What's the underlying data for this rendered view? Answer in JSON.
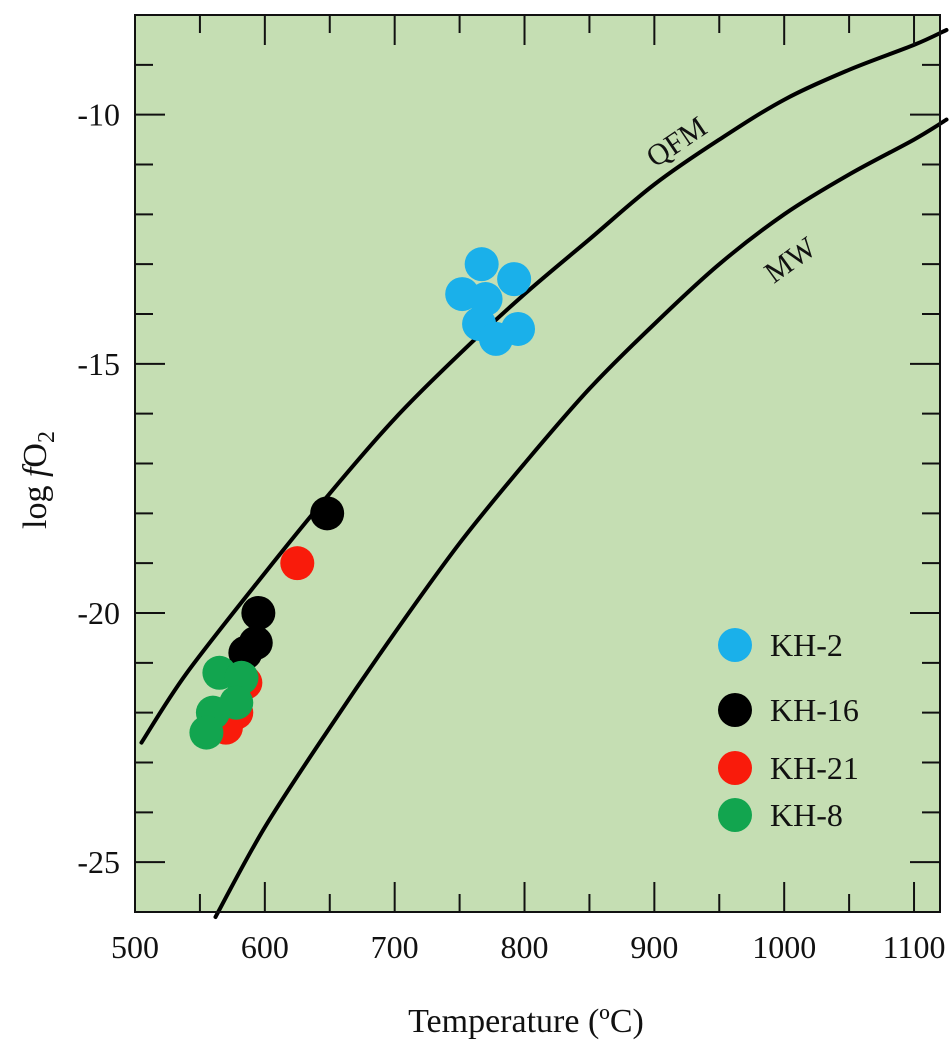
{
  "chart_data": {
    "type": "scatter",
    "title": "",
    "xlabel": "Temperature (ºC)",
    "ylabel_main": "log ",
    "ylabel_italic": "f",
    "ylabel_species": "O",
    "ylabel_subscript": "2",
    "xlim": [
      500,
      1120
    ],
    "ylim": [
      -26,
      -8
    ],
    "x_ticks": [
      500,
      600,
      700,
      800,
      900,
      1000,
      1100
    ],
    "y_ticks": [
      -10,
      -15,
      -20,
      -25
    ],
    "grid": false,
    "plot_background": "#c5deb3",
    "legend_position": "bottom-right",
    "curves": [
      {
        "name": "QFM",
        "color": "#000000",
        "points": [
          [
            505,
            -22.6
          ],
          [
            540,
            -21.2
          ],
          [
            600,
            -19.2
          ],
          [
            650,
            -17.6
          ],
          [
            700,
            -16.1
          ],
          [
            750,
            -14.8
          ],
          [
            800,
            -13.6
          ],
          [
            850,
            -12.5
          ],
          [
            900,
            -11.4
          ],
          [
            950,
            -10.5
          ],
          [
            1000,
            -9.7
          ],
          [
            1050,
            -9.1
          ],
          [
            1100,
            -8.6
          ],
          [
            1125,
            -8.3
          ]
        ]
      },
      {
        "name": "MW",
        "color": "#000000",
        "points": [
          [
            562,
            -26.1
          ],
          [
            600,
            -24.3
          ],
          [
            650,
            -22.3
          ],
          [
            700,
            -20.4
          ],
          [
            750,
            -18.6
          ],
          [
            800,
            -17.0
          ],
          [
            850,
            -15.5
          ],
          [
            900,
            -14.2
          ],
          [
            950,
            -13.0
          ],
          [
            1000,
            -12.0
          ],
          [
            1050,
            -11.2
          ],
          [
            1100,
            -10.5
          ],
          [
            1125,
            -10.1
          ]
        ]
      }
    ],
    "series": [
      {
        "name": "KH-2",
        "color": "#1ab0ea",
        "points": [
          [
            767,
            -13.0
          ],
          [
            792,
            -13.3
          ],
          [
            752,
            -13.6
          ],
          [
            770,
            -13.7
          ],
          [
            765,
            -14.2
          ],
          [
            795,
            -14.3
          ],
          [
            778,
            -14.5
          ]
        ]
      },
      {
        "name": "KH-16",
        "color": "#000000",
        "points": [
          [
            648,
            -18.0
          ],
          [
            595,
            -20.0
          ],
          [
            593,
            -20.6
          ],
          [
            585,
            -20.8
          ]
        ]
      },
      {
        "name": "KH-21",
        "color": "#f91b0b",
        "points": [
          [
            625,
            -19.0
          ],
          [
            585,
            -21.4
          ],
          [
            578,
            -22.0
          ],
          [
            570,
            -22.3
          ]
        ]
      },
      {
        "name": "KH-8",
        "color": "#12a54f",
        "points": [
          [
            565,
            -21.2
          ],
          [
            582,
            -21.3
          ],
          [
            578,
            -21.8
          ],
          [
            560,
            -22.0
          ],
          [
            555,
            -22.4
          ]
        ]
      }
    ]
  }
}
